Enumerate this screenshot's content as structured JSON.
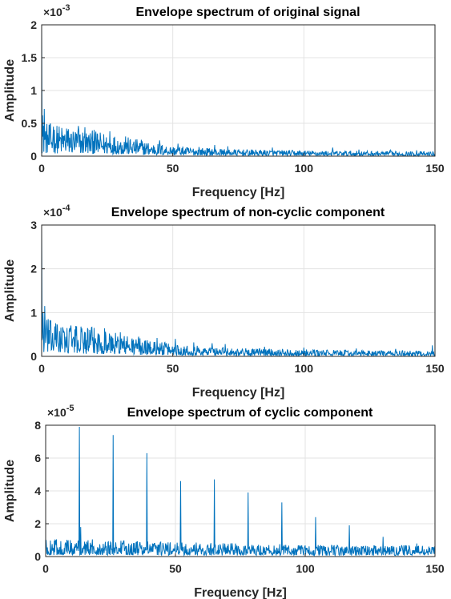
{
  "chart_data": [
    {
      "type": "line",
      "title": "Envelope spectrum of original signal",
      "xlabel": "Frequency [Hz]",
      "ylabel": "Amplitude",
      "xlim": [
        0,
        150
      ],
      "ylim": [
        0,
        2
      ],
      "y_exponent_label": "×10",
      "y_exponent": "-3",
      "x_ticks": [
        0,
        50,
        100,
        150
      ],
      "y_ticks": [
        0,
        0.5,
        1,
        1.5,
        2
      ],
      "x_tick_labels": [
        "0",
        "50",
        "100",
        "150"
      ],
      "y_tick_labels": [
        "0",
        "0.5",
        "1",
        "1.5",
        "2"
      ],
      "grid": true,
      "series": [
        {
          "color": "#0072BD",
          "peaks": [
            {
              "x": 0.0,
              "y": 1.98
            },
            {
              "x": 0.4,
              "y": 0.62
            },
            {
              "x": 1.0,
              "y": 0.72
            },
            {
              "x": 4.5,
              "y": 0.45
            },
            {
              "x": 9.5,
              "y": 0.42
            },
            {
              "x": 14.0,
              "y": 0.46
            },
            {
              "x": 16.5,
              "y": 0.44
            },
            {
              "x": 20.0,
              "y": 0.4
            },
            {
              "x": 26.0,
              "y": 0.38
            },
            {
              "x": 32.0,
              "y": 0.3
            },
            {
              "x": 38.0,
              "y": 0.25
            },
            {
              "x": 45.0,
              "y": 0.24
            },
            {
              "x": 52.0,
              "y": 0.19
            },
            {
              "x": 60.0,
              "y": 0.14
            },
            {
              "x": 66.0,
              "y": 0.17
            },
            {
              "x": 71.0,
              "y": 0.15
            },
            {
              "x": 88.0,
              "y": 0.13
            },
            {
              "x": 111.0,
              "y": 0.13
            },
            {
              "x": 121.0,
              "y": 0.1
            },
            {
              "x": 133.0,
              "y": 0.09
            },
            {
              "x": 143.0,
              "y": 0.09
            }
          ],
          "envelope": [
            {
              "x": 0,
              "y": 0.3
            },
            {
              "x": 10,
              "y": 0.26
            },
            {
              "x": 20,
              "y": 0.22
            },
            {
              "x": 30,
              "y": 0.18
            },
            {
              "x": 40,
              "y": 0.13
            },
            {
              "x": 50,
              "y": 0.09
            },
            {
              "x": 60,
              "y": 0.075
            },
            {
              "x": 75,
              "y": 0.06
            },
            {
              "x": 100,
              "y": 0.05
            },
            {
              "x": 125,
              "y": 0.045
            },
            {
              "x": 150,
              "y": 0.04
            }
          ]
        }
      ]
    },
    {
      "type": "line",
      "title": "Envelope spectrum of non-cyclic component",
      "xlabel": "Frequency [Hz]",
      "ylabel": "Amplitude",
      "xlim": [
        0,
        150
      ],
      "ylim": [
        0,
        3
      ],
      "y_exponent_label": "×10",
      "y_exponent": "-4",
      "x_ticks": [
        0,
        50,
        100,
        150
      ],
      "y_ticks": [
        0,
        1,
        2,
        3
      ],
      "x_tick_labels": [
        "0",
        "50",
        "100",
        "150"
      ],
      "y_tick_labels": [
        "0",
        "1",
        "2",
        "3"
      ],
      "grid": true,
      "series": [
        {
          "color": "#0072BD",
          "peaks": [
            {
              "x": 0.0,
              "y": 2.95
            },
            {
              "x": 0.5,
              "y": 1.0
            },
            {
              "x": 1.2,
              "y": 1.15
            },
            {
              "x": 2.5,
              "y": 0.85
            },
            {
              "x": 6.0,
              "y": 0.7
            },
            {
              "x": 11.0,
              "y": 0.65
            },
            {
              "x": 15.0,
              "y": 0.68
            },
            {
              "x": 19.0,
              "y": 0.66
            },
            {
              "x": 24.0,
              "y": 0.64
            },
            {
              "x": 30.0,
              "y": 0.55
            },
            {
              "x": 37.0,
              "y": 0.45
            },
            {
              "x": 44.0,
              "y": 0.42
            },
            {
              "x": 51.0,
              "y": 0.4
            },
            {
              "x": 58.0,
              "y": 0.32
            },
            {
              "x": 65.0,
              "y": 0.3
            },
            {
              "x": 70.0,
              "y": 0.28
            },
            {
              "x": 85.0,
              "y": 0.22
            },
            {
              "x": 100.0,
              "y": 0.2
            },
            {
              "x": 120.0,
              "y": 0.18
            },
            {
              "x": 135.0,
              "y": 0.17
            },
            {
              "x": 149.0,
              "y": 0.25
            }
          ],
          "envelope": [
            {
              "x": 0,
              "y": 0.5
            },
            {
              "x": 10,
              "y": 0.42
            },
            {
              "x": 20,
              "y": 0.38
            },
            {
              "x": 30,
              "y": 0.3
            },
            {
              "x": 40,
              "y": 0.22
            },
            {
              "x": 50,
              "y": 0.17
            },
            {
              "x": 60,
              "y": 0.14
            },
            {
              "x": 75,
              "y": 0.11
            },
            {
              "x": 100,
              "y": 0.09
            },
            {
              "x": 125,
              "y": 0.08
            },
            {
              "x": 150,
              "y": 0.07
            }
          ]
        }
      ]
    },
    {
      "type": "line",
      "title": "Envelope spectrum of cyclic component",
      "xlabel": "Frequency [Hz]",
      "ylabel": "Amplitude",
      "xlim": [
        0,
        150
      ],
      "ylim": [
        0,
        8
      ],
      "y_exponent_label": "×10",
      "y_exponent": "-5",
      "x_ticks": [
        0,
        50,
        100,
        150
      ],
      "y_ticks": [
        0,
        2,
        4,
        6,
        8
      ],
      "x_tick_labels": [
        "0",
        "50",
        "100",
        "150"
      ],
      "y_tick_labels": [
        "0",
        "2",
        "4",
        "6",
        "8"
      ],
      "grid": true,
      "series": [
        {
          "color": "#0072BD",
          "peaks": [
            {
              "x": 13.0,
              "y": 7.9
            },
            {
              "x": 13.5,
              "y": 1.8
            },
            {
              "x": 26.0,
              "y": 7.4
            },
            {
              "x": 39.0,
              "y": 6.3
            },
            {
              "x": 52.0,
              "y": 4.6
            },
            {
              "x": 65.0,
              "y": 4.7
            },
            {
              "x": 78.0,
              "y": 3.9
            },
            {
              "x": 91.0,
              "y": 3.3
            },
            {
              "x": 104.0,
              "y": 2.4
            },
            {
              "x": 117.0,
              "y": 1.9
            },
            {
              "x": 130.0,
              "y": 1.2
            },
            {
              "x": 143.0,
              "y": 0.8
            }
          ],
          "envelope": [
            {
              "x": 0,
              "y": 0.6
            },
            {
              "x": 20,
              "y": 0.6
            },
            {
              "x": 50,
              "y": 0.5
            },
            {
              "x": 80,
              "y": 0.45
            },
            {
              "x": 110,
              "y": 0.4
            },
            {
              "x": 150,
              "y": 0.4
            }
          ]
        }
      ]
    }
  ]
}
